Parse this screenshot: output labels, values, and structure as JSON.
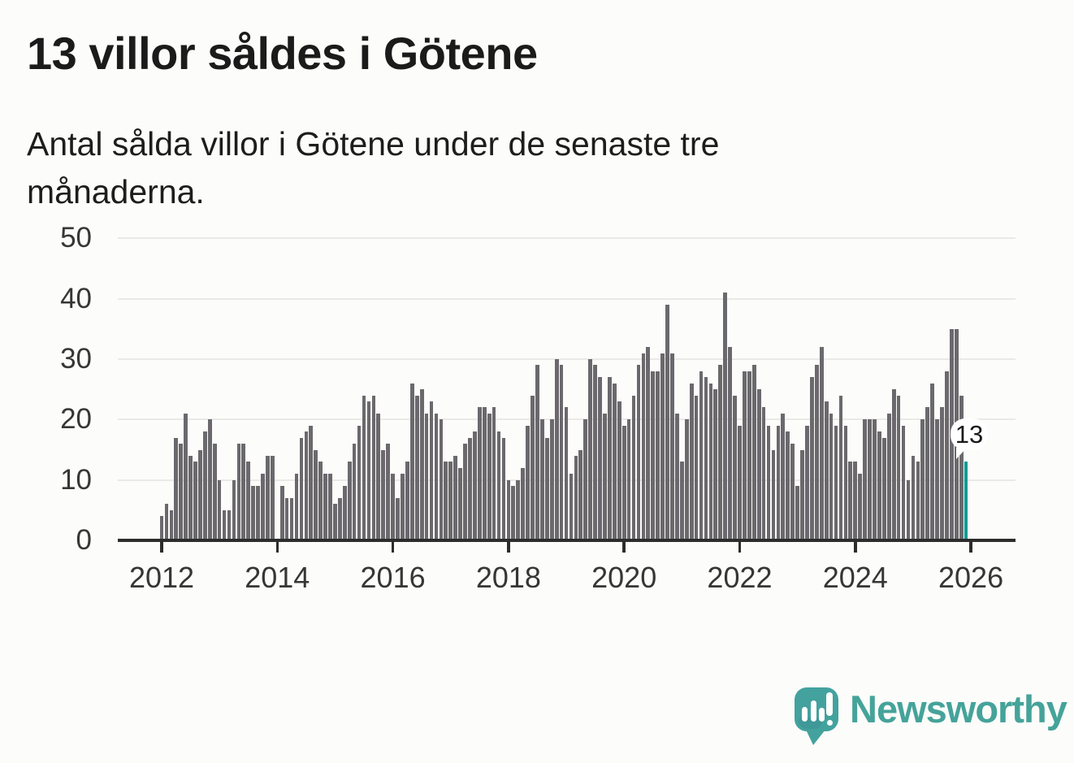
{
  "header": {
    "title": "13 villor såldes i Götene",
    "subtitle": "Antal sålda villor i Götene under de senaste tre månaderna."
  },
  "chart_data": {
    "type": "bar",
    "title": "13 villor såldes i Götene",
    "xlabel": "",
    "ylabel": "",
    "x_start": "2012-01",
    "x_interval": "month",
    "x_tick_labels": [
      "2012",
      "2014",
      "2016",
      "2018",
      "2020",
      "2022",
      "2024",
      "2026"
    ],
    "y_ticks": [
      0,
      10,
      20,
      30,
      40,
      50
    ],
    "ylim": [
      0,
      50
    ],
    "grid": "horizontal",
    "legend": "none",
    "bar_color": "#6b696d",
    "highlight_color": "#0d9b94",
    "highlight_index": 167,
    "highlight_label": "13",
    "values": [
      4,
      6,
      5,
      17,
      16,
      21,
      14,
      13,
      15,
      18,
      20,
      16,
      10,
      5,
      5,
      10,
      16,
      16,
      13,
      9,
      9,
      11,
      14,
      14,
      0,
      9,
      7,
      7,
      11,
      17,
      18,
      19,
      15,
      13,
      11,
      11,
      6,
      7,
      9,
      13,
      16,
      19,
      24,
      23,
      24,
      21,
      15,
      16,
      11,
      7,
      11,
      13,
      26,
      24,
      25,
      21,
      23,
      21,
      20,
      13,
      13,
      14,
      12,
      16,
      17,
      18,
      22,
      22,
      21,
      22,
      18,
      17,
      10,
      9,
      10,
      12,
      19,
      24,
      29,
      20,
      17,
      20,
      30,
      29,
      22,
      11,
      14,
      15,
      20,
      30,
      29,
      27,
      21,
      27,
      26,
      23,
      19,
      20,
      24,
      29,
      31,
      32,
      28,
      28,
      31,
      39,
      31,
      21,
      13,
      20,
      26,
      24,
      28,
      27,
      26,
      25,
      29,
      41,
      32,
      24,
      19,
      28,
      28,
      29,
      25,
      22,
      19,
      15,
      19,
      21,
      18,
      16,
      9,
      15,
      19,
      27,
      29,
      32,
      23,
      21,
      19,
      24,
      19,
      13,
      13,
      11,
      20,
      20,
      20,
      18,
      17,
      21,
      25,
      24,
      19,
      10,
      14,
      13,
      20,
      22,
      26,
      20,
      22,
      28,
      35,
      35,
      24,
      13
    ]
  },
  "footer": {
    "brand": "Newsworthy"
  }
}
